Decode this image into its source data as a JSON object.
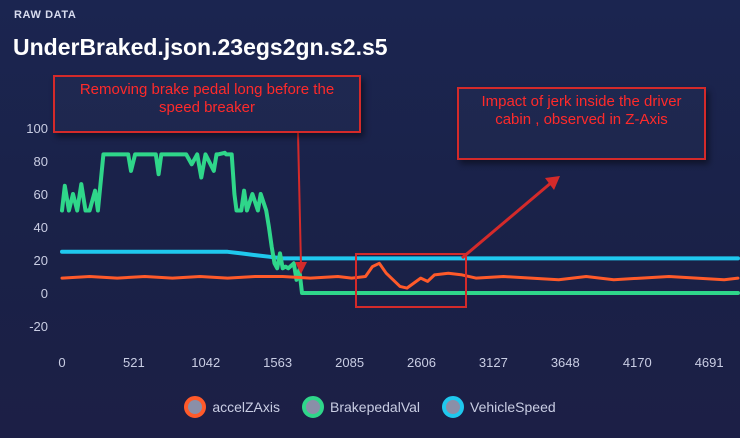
{
  "panel_label": "RAW DATA",
  "title": "UnderBraked.json.23egs2gn.s2.s5",
  "annotations": [
    "Removing brake pedal long before the speed breaker",
    "Impact of jerk inside the driver cabin , observed in Z-Axis"
  ],
  "colors": {
    "accel": "#ff5a2a",
    "brake": "#2fd68a",
    "speed": "#1fc8ee",
    "annotation": "#d42a2a"
  },
  "chart_data": {
    "type": "line",
    "title": "UnderBraked.json.23egs2gn.s2.s5",
    "xlabel": "",
    "ylabel": "",
    "xlim": [
      0,
      4900
    ],
    "ylim": [
      -20,
      100
    ],
    "x_ticks": [
      "0",
      "521",
      "1042",
      "1563",
      "2085",
      "2606",
      "3127",
      "3648",
      "4170",
      "4691"
    ],
    "y_ticks": [
      "100",
      "80",
      "60",
      "40",
      "20",
      "0",
      "-20"
    ],
    "grid": false,
    "legend": "bottom",
    "series": [
      {
        "name": "accelZAxis",
        "color": "#ff5a2a",
        "x": [
          0,
          200,
          400,
          600,
          800,
          1000,
          1200,
          1400,
          1600,
          1800,
          2000,
          2100,
          2200,
          2250,
          2300,
          2350,
          2400,
          2450,
          2500,
          2550,
          2600,
          2650,
          2700,
          2800,
          2900,
          3000,
          3200,
          3400,
          3600,
          3800,
          4000,
          4200,
          4400,
          4600,
          4800,
          4900
        ],
        "y": [
          9,
          10,
          9,
          10,
          9,
          10,
          9,
          10,
          10,
          9,
          10,
          9,
          10,
          16,
          18,
          12,
          8,
          4,
          3,
          6,
          9,
          7,
          11,
          12,
          11,
          9,
          10,
          9,
          8,
          10,
          8,
          9,
          10,
          9,
          8,
          9
        ]
      },
      {
        "name": "BrakepedalVal",
        "color": "#2fd68a",
        "x": [
          0,
          20,
          50,
          80,
          110,
          140,
          170,
          200,
          240,
          260,
          300,
          320,
          440,
          480,
          500,
          530,
          560,
          600,
          640,
          680,
          700,
          720,
          740,
          780,
          800,
          820,
          860,
          900,
          940,
          980,
          1010,
          1040,
          1100,
          1120,
          1130,
          1180,
          1190,
          1230,
          1250,
          1265,
          1300,
          1320,
          1340,
          1380,
          1420,
          1440,
          1480,
          1500,
          1520,
          1540,
          1560,
          1580,
          1600,
          1620,
          1640,
          1680,
          1700,
          1720,
          1740,
          1760,
          1780,
          1800,
          4900
        ],
        "y": [
          50,
          65,
          50,
          60,
          50,
          66,
          50,
          50,
          62,
          50,
          84,
          84,
          84,
          84,
          74,
          84,
          84,
          84,
          84,
          84,
          72,
          84,
          84,
          84,
          84,
          84,
          84,
          84,
          78,
          84,
          70,
          84,
          74,
          84,
          84,
          85,
          84,
          84,
          60,
          50,
          50,
          62,
          50,
          60,
          50,
          60,
          50,
          40,
          28,
          18,
          15,
          24,
          15,
          16,
          15,
          18,
          8,
          14,
          0,
          0,
          0,
          0,
          0
        ]
      },
      {
        "name": "VehicleSpeed",
        "color": "#1fc8ee",
        "x": [
          0,
          1200,
          1300,
          1400,
          1500,
          1600,
          1700,
          1800,
          1900,
          2000,
          4900
        ],
        "y": [
          25,
          25,
          24,
          23,
          22,
          21,
          21,
          21,
          21,
          21,
          21
        ]
      }
    ]
  }
}
